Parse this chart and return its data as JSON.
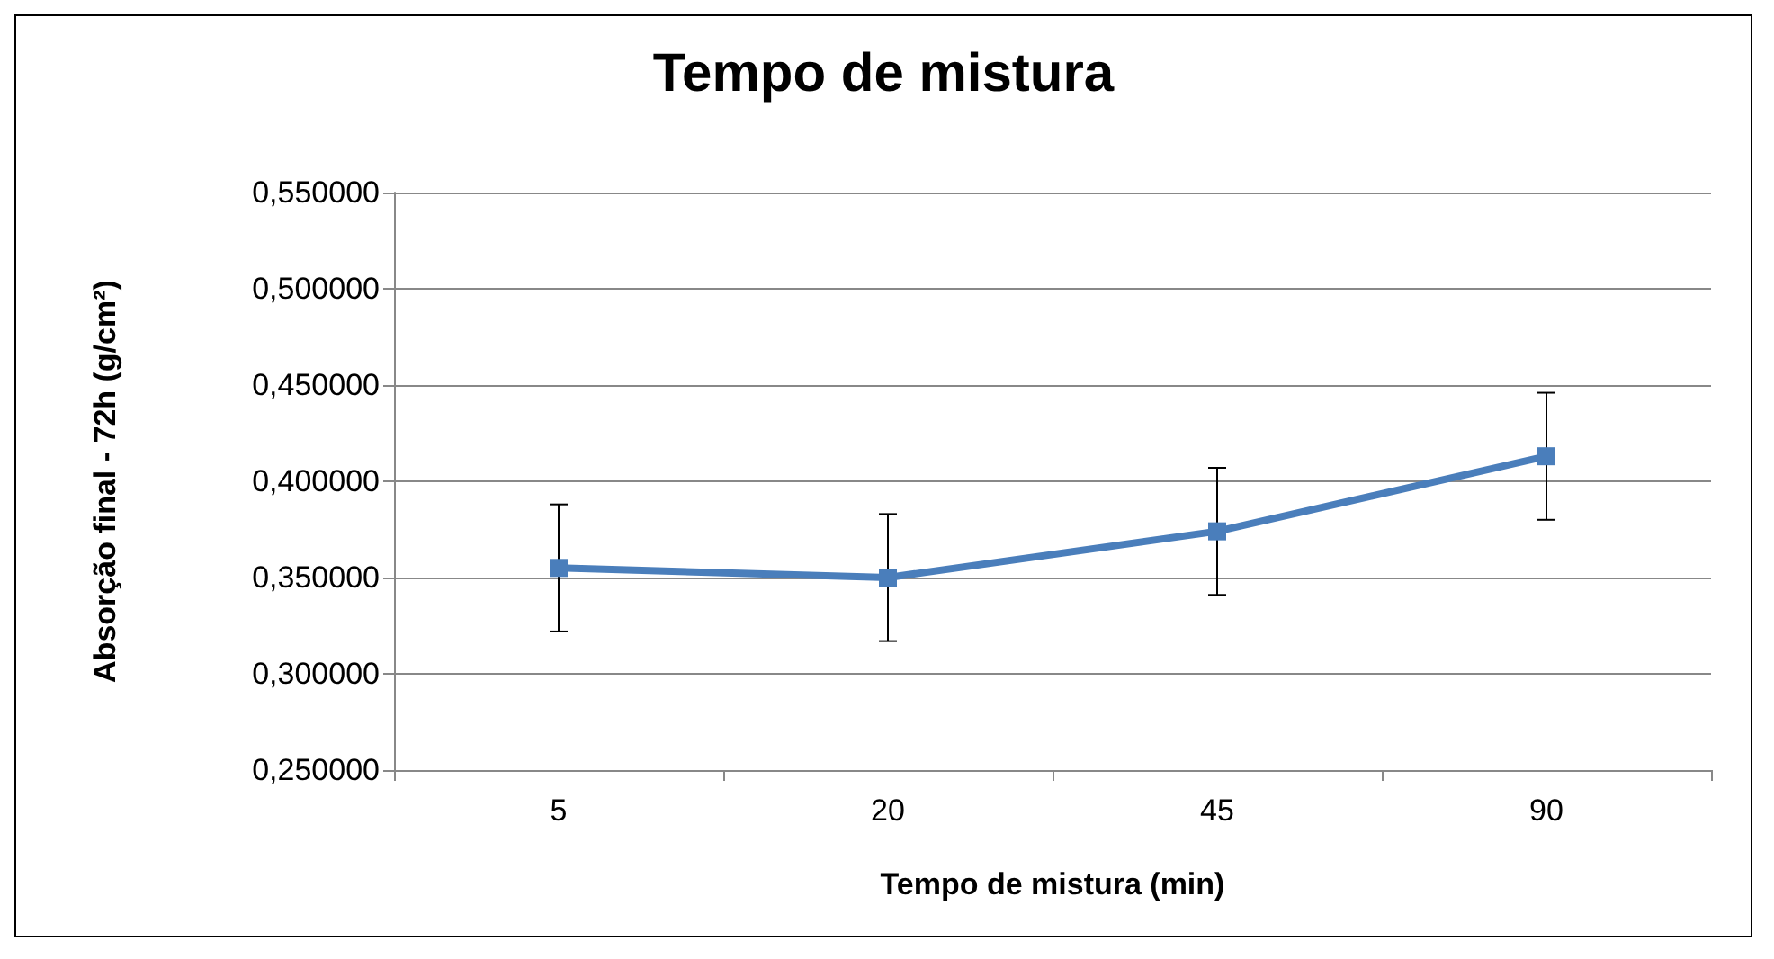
{
  "chart_data": {
    "type": "line",
    "title": "Tempo de mistura",
    "xlabel": "Tempo de mistura (min)",
    "ylabel": "Absorção final - 72h (g/cm²)",
    "categories": [
      "5",
      "20",
      "45",
      "90"
    ],
    "series": [
      {
        "color": "#4a7ebb",
        "values": [
          0.355,
          0.35,
          0.374,
          0.413
        ],
        "errors": [
          0.033,
          0.033,
          0.033,
          0.033
        ]
      }
    ],
    "ylim": [
      0.25,
      0.55
    ],
    "yticks": [
      {
        "value": 0.25,
        "label": "0,250000"
      },
      {
        "value": 0.3,
        "label": "0,300000"
      },
      {
        "value": 0.35,
        "label": "0,350000"
      },
      {
        "value": 0.4,
        "label": "0,400000"
      },
      {
        "value": 0.45,
        "label": "0,450000"
      },
      {
        "value": 0.5,
        "label": "0,500000"
      },
      {
        "value": 0.55,
        "label": "0,550000"
      }
    ],
    "grid": "y",
    "marker": "square",
    "line_style": "solid"
  }
}
